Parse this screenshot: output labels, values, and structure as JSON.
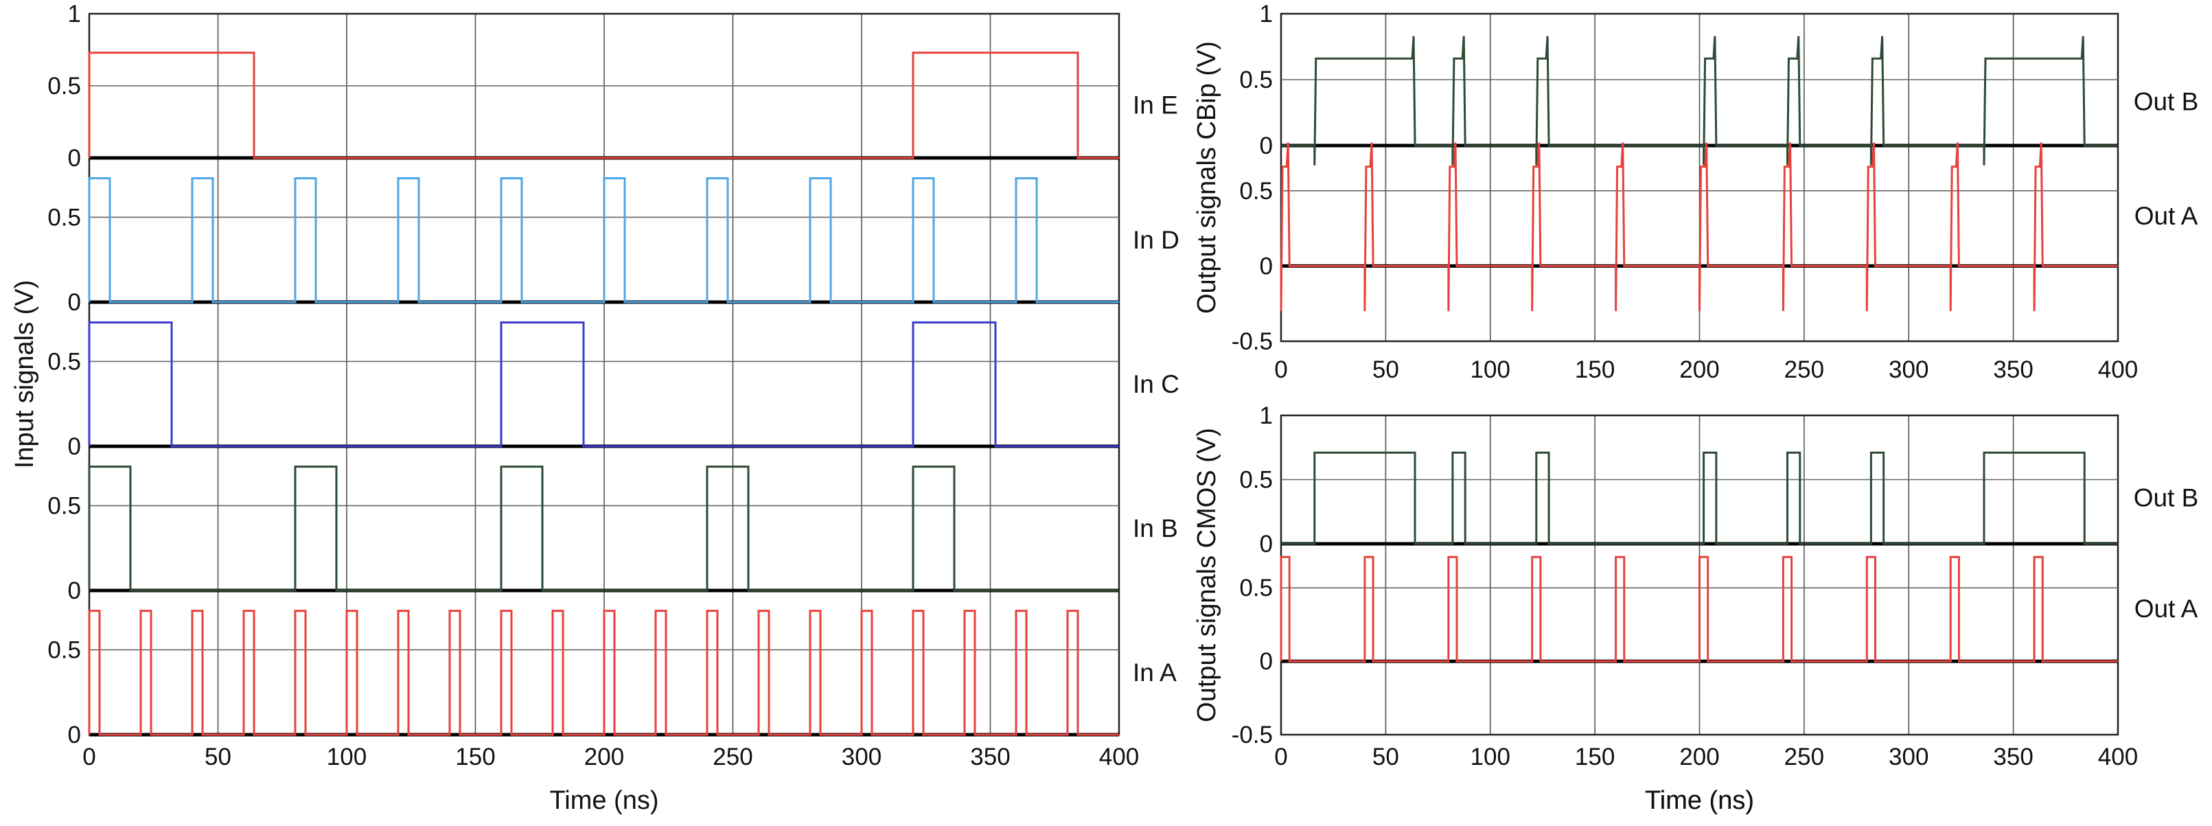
{
  "chart_data": [
    {
      "type": "line",
      "title": "",
      "xlabel": "Time (ns)",
      "ylabel": "Input signals (V)",
      "xlim": [
        0,
        400
      ],
      "x_ticks": [
        "0",
        "50",
        "100",
        "150",
        "200",
        "250",
        "300",
        "350",
        "400"
      ],
      "grid": true,
      "panels": [
        {
          "name": "In E",
          "ylim": [
            0,
            1
          ],
          "y_ticks": [
            "1",
            "0.5",
            "0"
          ],
          "color": "#e8413c",
          "high_v": 0.73,
          "pulses": [
            [
              0,
              64
            ],
            [
              320,
              384
            ]
          ]
        },
        {
          "name": "In D",
          "ylim": [
            0,
            0.85
          ],
          "y_ticks": [
            "0.5",
            "0"
          ],
          "color": "#4ea6e6",
          "high_v": 0.73,
          "pulses": [
            [
              0,
              8
            ],
            [
              40,
              48
            ],
            [
              80,
              88
            ],
            [
              120,
              128
            ],
            [
              160,
              168
            ],
            [
              200,
              208
            ],
            [
              240,
              248
            ],
            [
              280,
              288
            ],
            [
              320,
              328
            ],
            [
              360,
              368
            ]
          ]
        },
        {
          "name": "In C",
          "ylim": [
            0,
            0.85
          ],
          "y_ticks": [
            "0.5",
            "0"
          ],
          "color": "#3a3ad0",
          "high_v": 0.73,
          "pulses": [
            [
              0,
              32
            ],
            [
              160,
              192
            ],
            [
              320,
              352
            ]
          ]
        },
        {
          "name": "In B",
          "ylim": [
            0,
            0.85
          ],
          "y_ticks": [
            "0.5",
            "0"
          ],
          "color": "#2e4a34",
          "high_v": 0.73,
          "pulses": [
            [
              0,
              16
            ],
            [
              80,
              96
            ],
            [
              160,
              176
            ],
            [
              240,
              256
            ],
            [
              320,
              336
            ]
          ]
        },
        {
          "name": "In A",
          "ylim": [
            0,
            0.85
          ],
          "y_ticks": [
            "0.5",
            "0"
          ],
          "color": "#e8413c",
          "high_v": 0.73,
          "pulses": [
            [
              0,
              4
            ],
            [
              20,
              24
            ],
            [
              40,
              44
            ],
            [
              60,
              64
            ],
            [
              80,
              84
            ],
            [
              100,
              104
            ],
            [
              120,
              124
            ],
            [
              140,
              144
            ],
            [
              160,
              164
            ],
            [
              180,
              184
            ],
            [
              200,
              204
            ],
            [
              220,
              224
            ],
            [
              240,
              244
            ],
            [
              260,
              264
            ],
            [
              280,
              284
            ],
            [
              300,
              304
            ],
            [
              320,
              324
            ],
            [
              340,
              344
            ],
            [
              360,
              364
            ],
            [
              380,
              384
            ]
          ]
        }
      ]
    },
    {
      "type": "line",
      "title": "",
      "xlabel": "Time (ns)",
      "ylabel": "Output signals CBip (V)",
      "xlim": [
        0,
        400
      ],
      "x_ticks": [
        "0",
        "50",
        "100",
        "150",
        "200",
        "250",
        "300",
        "350",
        "400"
      ],
      "grid": true,
      "panels": [
        {
          "name": "Out B",
          "ylim": [
            0,
            1
          ],
          "y_ticks": [
            "1",
            "0.5",
            "0"
          ],
          "color": "#2e4a34",
          "high_v": 0.66,
          "spike_v": 0.83,
          "dip_v": -0.15,
          "pulses": [
            [
              16,
              64
            ],
            [
              82,
              88
            ],
            [
              122,
              128
            ],
            [
              202,
              208
            ],
            [
              242,
              248
            ],
            [
              282,
              288
            ],
            [
              336,
              384
            ]
          ]
        },
        {
          "name": "Out A",
          "ylim": [
            -0.5,
            0.8
          ],
          "y_ticks": [
            "0.5",
            "0",
            "-0.5"
          ],
          "color": "#e8413c",
          "high_v": 0.66,
          "spike_v": 0.82,
          "dip_v": -0.3,
          "pulses": [
            [
              0,
              4
            ],
            [
              40,
              44
            ],
            [
              80,
              84
            ],
            [
              120,
              124
            ],
            [
              160,
              164
            ],
            [
              200,
              204
            ],
            [
              240,
              244
            ],
            [
              280,
              284
            ],
            [
              320,
              324
            ],
            [
              360,
              364
            ]
          ]
        }
      ]
    },
    {
      "type": "line",
      "title": "",
      "xlabel": "Time (ns)",
      "ylabel": "Output signals CMOS (V)",
      "xlim": [
        0,
        400
      ],
      "x_ticks": [
        "0",
        "50",
        "100",
        "150",
        "200",
        "250",
        "300",
        "350",
        "400"
      ],
      "grid": true,
      "panels": [
        {
          "name": "Out B",
          "ylim": [
            0,
            1
          ],
          "y_ticks": [
            "1",
            "0.5",
            "0"
          ],
          "color": "#2e4a34",
          "high_v": 0.71,
          "pulses": [
            [
              16,
              64
            ],
            [
              82,
              88
            ],
            [
              122,
              128
            ],
            [
              202,
              208
            ],
            [
              242,
              248
            ],
            [
              282,
              288
            ],
            [
              336,
              384
            ]
          ]
        },
        {
          "name": "Out A",
          "ylim": [
            -0.5,
            0.8
          ],
          "y_ticks": [
            "0.5",
            "0",
            "-0.5"
          ],
          "color": "#e8413c",
          "high_v": 0.71,
          "pulses": [
            [
              0,
              4
            ],
            [
              40,
              44
            ],
            [
              80,
              84
            ],
            [
              120,
              124
            ],
            [
              160,
              164
            ],
            [
              200,
              204
            ],
            [
              240,
              244
            ],
            [
              280,
              284
            ],
            [
              320,
              324
            ],
            [
              360,
              364
            ]
          ]
        }
      ]
    }
  ]
}
